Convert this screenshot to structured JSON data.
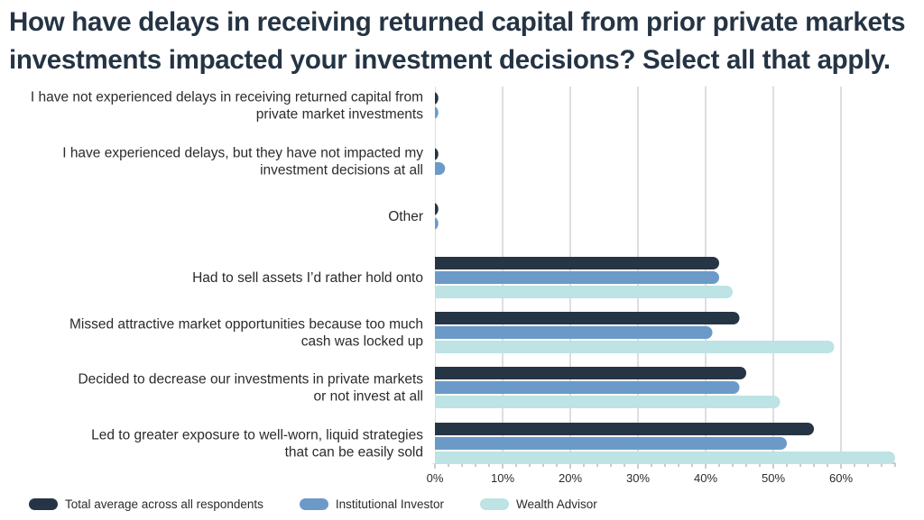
{
  "title": "How have delays in receiving returned capital from prior private markets investments impacted your investment decisions? Select all that apply.",
  "chart_data": {
    "type": "bar",
    "orientation": "horizontal",
    "categories": [
      [
        "I have not experienced delays in receiving returned capital from",
        "private market investments"
      ],
      [
        "I have experienced delays, but they have not impacted my",
        "investment decisions at all"
      ],
      [
        "Other"
      ],
      [
        "Had to sell assets I’d rather hold onto"
      ],
      [
        "Missed attractive market opportunities because too much",
        "cash was locked up"
      ],
      [
        "Decided to decrease our investments in private markets",
        "or not invest at all"
      ],
      [
        "Led to greater exposure to well-worn, liquid strategies",
        "that can be easily sold"
      ]
    ],
    "series": [
      {
        "name": "Total average across all respondents",
        "color": "#263545",
        "values": [
          0.5,
          0.5,
          0.5,
          42,
          45,
          46,
          56
        ]
      },
      {
        "name": "Institutional Investor",
        "color": "#6b9ac8",
        "values": [
          0.5,
          1.5,
          0.5,
          42,
          41,
          45,
          52
        ]
      },
      {
        "name": "Wealth Advisor",
        "color": "#bde3e4",
        "values": [
          null,
          null,
          null,
          44,
          59,
          51,
          68
        ]
      }
    ],
    "xlim": [
      0,
      68
    ],
    "xticks": [
      0,
      10,
      20,
      30,
      40,
      50,
      60
    ],
    "xtick_labels": [
      "0%",
      "10%",
      "20%",
      "30%",
      "40%",
      "50%",
      "60%"
    ],
    "grid": "vertical",
    "legend_position": "bottom-left"
  }
}
